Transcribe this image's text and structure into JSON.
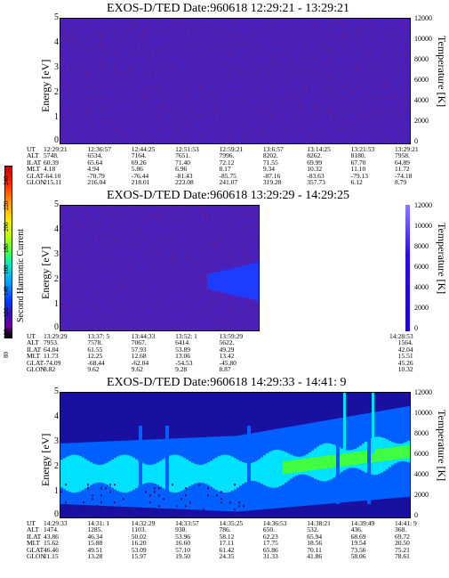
{
  "colorbar": {
    "label": "Second Harmonic Current",
    "ticks": [
      "240",
      "220",
      "200",
      "180",
      "160",
      "140",
      "120",
      "100",
      "80"
    ]
  },
  "panels": [
    {
      "title": "EXOS-D/TED   Date:960618   12:29:21 - 13:29:21",
      "ylabel": "Energy [eV]",
      "rlabel": "Temperature [K]",
      "yticks": [
        "5",
        "4",
        "3",
        "2",
        "1",
        "0"
      ],
      "rticks": [
        "12000",
        "10000",
        "8000",
        "6000",
        "4000",
        "2000",
        "0"
      ],
      "table": {
        "rows": [
          "UT",
          "ALT",
          "ILAT",
          "MLT",
          "GLAT",
          "GLON"
        ],
        "cols": [
          [
            "12:29:21",
            "5748.",
            "60.39",
            "4.18",
            "-64.10",
            "215.11"
          ],
          [
            "12:36:57",
            "6534.",
            "65.64",
            "4.94",
            "-70.79",
            "216.04"
          ],
          [
            "12:44:25",
            "7164.",
            "69.26",
            "5.86",
            "-76.44",
            "218.01"
          ],
          [
            "12:51:53",
            "7651.",
            "71.40",
            "6.96",
            "-81.43",
            "223.08"
          ],
          [
            "12:59:21",
            "7996.",
            "72.12",
            "8.17",
            "-85.75",
            "241.07"
          ],
          [
            "13:6:57",
            "8202.",
            "71.55",
            "9.34",
            "-87.16",
            "319.28"
          ],
          [
            "13:14:25",
            "8262.",
            "69.99",
            "10.32",
            "-83.63",
            "357.73"
          ],
          [
            "13:21:53",
            "8180.",
            "67.70",
            "11.10",
            "-79.13",
            "6.12"
          ],
          [
            "13:29:21",
            "7958.",
            "64.89",
            "11.72",
            "-74.18",
            "8.79"
          ]
        ]
      }
    },
    {
      "title": "EXOS-D/TED   Date:960618   13:29:29 - 14:29:25",
      "ylabel": "Energy [eV]",
      "rlabel": "Temperature [K]",
      "yticks": [
        "5",
        "4",
        "3",
        "2",
        "1",
        "0"
      ],
      "rticks": [
        "12000",
        "10000",
        "8000",
        "6000",
        "4000",
        "2000",
        "0"
      ],
      "table": {
        "rows": [
          "UT",
          "ALT",
          "ILAT",
          "MLT",
          "GLAT",
          "GLON"
        ],
        "cols": [
          [
            "13:29:29",
            "7953.",
            "64.84",
            "11.73",
            "-74.09",
            "8.82"
          ],
          [
            "13:37: 5",
            "7578.",
            "61.55",
            "12.25",
            "-68.44",
            "9.62"
          ],
          [
            "13:44:33",
            "7067.",
            "57.93",
            "12.68",
            "-62.04",
            "9.62"
          ],
          [
            "13:52: 1",
            "6414.",
            "53.89",
            "13.06",
            "-54.53",
            "9.28"
          ],
          [
            "13:59:29",
            "5622.",
            "49.29",
            "13.42",
            "-45.80",
            "8.87"
          ]
        ],
        "last": [
          "14:28:53",
          "1564.",
          "42.04",
          "15.51",
          "45.26",
          "10.32"
        ]
      }
    },
    {
      "title": "EXOS-D/TED   Date:960618   14:29:33 - 14:41: 9",
      "ylabel": "Energy [eV]",
      "rlabel": "Temperature [K]",
      "yticks": [
        "5",
        "4",
        "3",
        "2",
        "1",
        "0"
      ],
      "rticks": [
        "12000",
        "10000",
        "8000",
        "6000",
        "4000",
        "2000",
        "0"
      ],
      "table": {
        "rows": [
          "UT",
          "ALT",
          "ILAT",
          "MLT",
          "GLAT",
          "GLON"
        ],
        "cols": [
          [
            "14:29:33",
            "1474.",
            "43.86",
            "15.62",
            "46.46",
            "11.15"
          ],
          [
            "14:31: 1",
            "1285.",
            "46.34",
            "15.88",
            "49.51",
            "13.28"
          ],
          [
            "14:32:29",
            "1103.",
            "50.02",
            "16.20",
            "53.09",
            "15.97"
          ],
          [
            "14:33:57",
            "938.",
            "53.96",
            "16.60",
            "57.10",
            "19.50"
          ],
          [
            "14:35:25",
            "786.",
            "58.12",
            "17.11",
            "61.42",
            "24.35"
          ],
          [
            "14:36:53",
            "650.",
            "62.23",
            "17.75",
            "65.86",
            "31.33"
          ],
          [
            "14:38:21",
            "532.",
            "65.94",
            "18.56",
            "70.11",
            "41.86"
          ],
          [
            "14:39:49",
            "436.",
            "68.69",
            "19.54",
            "73.56",
            "58.06"
          ],
          [
            "14:41: 9",
            "368.",
            "69.72",
            "20.50",
            "75.21",
            "78.61"
          ]
        ]
      }
    }
  ],
  "chart_data": [
    {
      "type": "heatmap",
      "title": "EXOS-D/TED   Date:960618   12:29:21 - 13:29:21",
      "xlabel": "UT",
      "ylabel": "Energy [eV]",
      "y2label": "Temperature [K]",
      "ylim": [
        0,
        5
      ],
      "y2lim": [
        0,
        12000
      ],
      "x": [
        "12:29:21",
        "12:36:57",
        "12:44:25",
        "12:51:53",
        "12:59:21",
        "13:6:57",
        "13:14:25",
        "13:21:53",
        "13:29:21"
      ],
      "values": "uniform low (~90) across all energies and times",
      "colors": {
        "background": "#4b20b8",
        "speckle": "#6e2080"
      }
    },
    {
      "type": "heatmap",
      "title": "EXOS-D/TED   Date:960618   13:29:29 - 14:29:25",
      "xlabel": "UT",
      "ylabel": "Energy [eV]",
      "y2label": "Temperature [K]",
      "ylim": [
        0,
        5
      ],
      "y2lim": [
        0,
        12000
      ],
      "x": [
        "13:29:29",
        "13:37: 5",
        "13:44:33",
        "13:52: 1",
        "13:59:29",
        "14:28:53"
      ],
      "values": "low (~90) everywhere, slight enhancement (~110) near 1.5-2.5 eV after 13:55; data gap after 13:59:29",
      "colors": {
        "background": "#4b20b8",
        "enhance": "#1e3cff",
        "gap": "#ffffff"
      }
    },
    {
      "type": "heatmap",
      "title": "EXOS-D/TED   Date:960618   14:29:33 - 14:41: 9",
      "xlabel": "UT",
      "ylabel": "Energy [eV]",
      "y2label": "Temperature [K]",
      "ylim": [
        0,
        5
      ],
      "y2lim": [
        0,
        12000
      ],
      "x": [
        "14:29:33",
        "14:31: 1",
        "14:32:29",
        "14:33:57",
        "14:35:25",
        "14:36:53",
        "14:38:21",
        "14:39:49",
        "14:41: 9"
      ],
      "values": "band peak near 1.8 eV (~150) early, rising to ~2.6 eV (~170) late; vertical enhancements near 14:38:30 and 14:40:00",
      "colors": {
        "low": "#1a10a0",
        "mid": "#0060ff",
        "high": "#00e0ff",
        "peak": "#40ff40"
      }
    }
  ]
}
